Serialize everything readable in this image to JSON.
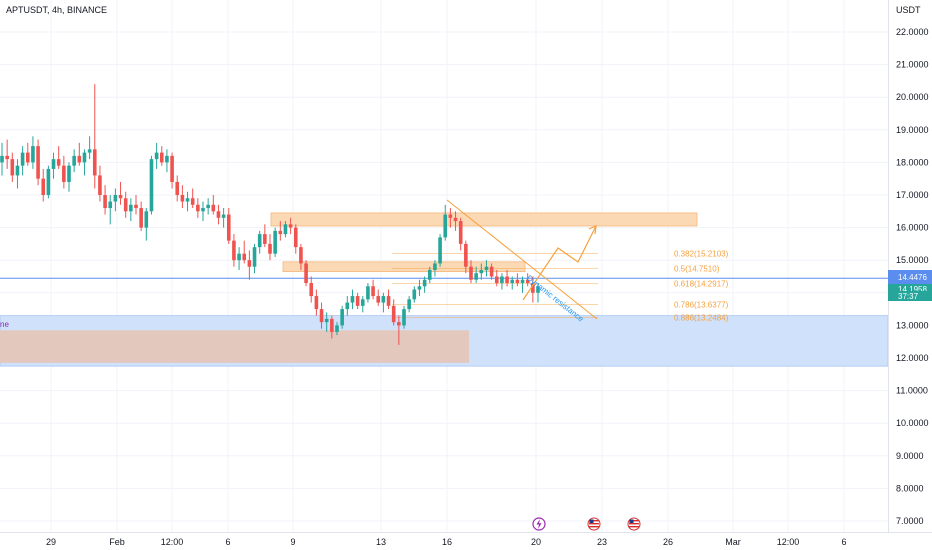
{
  "header": {
    "symbol_label": "APTUSDT, 4h, BINANCE"
  },
  "price_axis": {
    "currency": "USDT",
    "ticks": [
      "22.0000",
      "21.0000",
      "20.0000",
      "19.0000",
      "18.0000",
      "17.0000",
      "16.0000",
      "15.0000",
      "14.0000",
      "13.0000",
      "12.0000",
      "11.0000",
      "10.0000",
      "9.0000",
      "8.0000",
      "7.0000"
    ]
  },
  "time_axis": {
    "ticks": [
      "29",
      "Feb",
      "12:00",
      "6",
      "9",
      "13",
      "16",
      "20",
      "23",
      "26",
      "Mar",
      "12:00",
      "6"
    ]
  },
  "price_tags": {
    "line_price": "14.4476",
    "last_price": "14.1958",
    "countdown": "37:37"
  },
  "fib_levels": [
    {
      "ratio": "0.382",
      "price": "15.2103",
      "value": 15.2103
    },
    {
      "ratio": "0.5",
      "price": "14.7510",
      "value": 14.751
    },
    {
      "ratio": "0.618",
      "price": "14.2917",
      "value": 14.2917
    },
    {
      "ratio": "0.786",
      "price": "13.6377",
      "value": 13.6377
    },
    {
      "ratio": "0.886",
      "price": "13.2484",
      "value": 13.2484
    }
  ],
  "annotations": {
    "trendline_label": "Dynamic resistance",
    "zone_label": "ne"
  },
  "event_icons": [
    "lightning-icon",
    "us-flag-icon",
    "us-flag-icon"
  ],
  "colors": {
    "up": "#26a69a",
    "down": "#ef5350",
    "fib": "#f7a13d",
    "blue": "#2196f3",
    "demand_zone": "#cfe1fb",
    "inner_zone": "#e3c8bd",
    "supply_zone": "#fbd9b5",
    "price_line": "#5b8def",
    "last_tag": "#26a69a"
  },
  "chart_data": {
    "type": "candlestick",
    "title": "APTUSDT, 4h, BINANCE",
    "ylim": [
      6.8,
      22.6
    ],
    "y_ticks": [
      22,
      21,
      20,
      19,
      18,
      17,
      16,
      15,
      14,
      13,
      12,
      11,
      10,
      9,
      8,
      7
    ],
    "x_ticks": [
      "29",
      "Feb",
      "12:00",
      "6",
      "9",
      "13",
      "16",
      "20",
      "23",
      "26",
      "Mar",
      "12:00",
      "6"
    ],
    "grid": true,
    "current_price_line": 14.4476,
    "last_price": 14.1958,
    "candles_ohlc": [
      [
        18.0,
        18.6,
        17.6,
        18.2
      ],
      [
        18.2,
        18.7,
        17.8,
        18.1
      ],
      [
        18.1,
        18.3,
        17.4,
        17.6
      ],
      [
        17.6,
        18.1,
        17.2,
        17.9
      ],
      [
        17.9,
        18.5,
        17.6,
        18.3
      ],
      [
        18.3,
        18.6,
        17.9,
        18.0
      ],
      [
        18.0,
        18.8,
        17.8,
        18.5
      ],
      [
        18.5,
        18.7,
        17.3,
        17.5
      ],
      [
        17.5,
        17.8,
        16.8,
        17.0
      ],
      [
        17.0,
        17.9,
        16.9,
        17.8
      ],
      [
        17.8,
        18.3,
        17.5,
        18.1
      ],
      [
        18.1,
        18.5,
        17.8,
        17.9
      ],
      [
        17.9,
        18.2,
        17.2,
        17.4
      ],
      [
        17.4,
        18.0,
        17.1,
        17.9
      ],
      [
        17.9,
        18.4,
        17.7,
        18.2
      ],
      [
        18.2,
        18.6,
        17.9,
        18.0
      ],
      [
        18.0,
        18.4,
        17.6,
        18.3
      ],
      [
        18.3,
        18.8,
        18.1,
        18.4
      ],
      [
        18.4,
        20.4,
        17.2,
        17.6
      ],
      [
        17.6,
        17.9,
        16.8,
        17.0
      ],
      [
        17.0,
        17.3,
        16.4,
        16.6
      ],
      [
        16.6,
        17.0,
        16.1,
        16.8
      ],
      [
        16.8,
        17.2,
        16.5,
        17.0
      ],
      [
        17.0,
        17.4,
        16.7,
        16.9
      ],
      [
        16.9,
        17.1,
        16.3,
        16.5
      ],
      [
        16.5,
        16.9,
        16.2,
        16.7
      ],
      [
        16.7,
        17.0,
        16.4,
        16.6
      ],
      [
        16.6,
        16.8,
        15.9,
        16.0
      ],
      [
        16.0,
        16.6,
        15.6,
        16.5
      ],
      [
        16.5,
        18.2,
        16.4,
        18.1
      ],
      [
        18.1,
        18.6,
        17.8,
        18.3
      ],
      [
        18.3,
        18.5,
        17.9,
        18.0
      ],
      [
        18.0,
        18.4,
        17.7,
        18.2
      ],
      [
        18.2,
        18.3,
        17.2,
        17.4
      ],
      [
        17.4,
        17.6,
        16.8,
        17.0
      ],
      [
        17.0,
        17.3,
        16.6,
        16.8
      ],
      [
        16.8,
        17.1,
        16.5,
        16.9
      ],
      [
        16.9,
        17.2,
        16.6,
        16.7
      ],
      [
        16.7,
        16.9,
        16.3,
        16.5
      ],
      [
        16.5,
        16.8,
        16.2,
        16.6
      ],
      [
        16.6,
        16.9,
        16.4,
        16.7
      ],
      [
        16.7,
        17.0,
        16.4,
        16.5
      ],
      [
        16.5,
        16.7,
        16.1,
        16.3
      ],
      [
        16.3,
        16.6,
        16.0,
        16.4
      ],
      [
        16.4,
        16.6,
        15.5,
        15.6
      ],
      [
        15.6,
        15.8,
        14.8,
        15.0
      ],
      [
        15.0,
        15.4,
        14.7,
        15.2
      ],
      [
        15.2,
        15.6,
        14.9,
        15.0
      ],
      [
        15.0,
        15.3,
        14.4,
        14.8
      ],
      [
        14.8,
        15.5,
        14.6,
        15.4
      ],
      [
        15.4,
        15.9,
        15.2,
        15.8
      ],
      [
        15.8,
        16.1,
        15.4,
        15.5
      ],
      [
        15.5,
        15.8,
        15.0,
        15.2
      ],
      [
        15.2,
        16.0,
        15.1,
        15.9
      ],
      [
        15.9,
        16.2,
        15.6,
        15.8
      ],
      [
        15.8,
        16.2,
        15.7,
        16.1
      ],
      [
        16.1,
        16.3,
        15.8,
        16.0
      ],
      [
        16.0,
        16.1,
        15.2,
        15.4
      ],
      [
        15.4,
        15.5,
        14.7,
        14.9
      ],
      [
        14.9,
        15.0,
        14.2,
        14.3
      ],
      [
        14.3,
        14.5,
        13.7,
        13.9
      ],
      [
        13.9,
        14.1,
        13.3,
        13.5
      ],
      [
        13.5,
        13.7,
        12.9,
        13.1
      ],
      [
        13.1,
        13.4,
        12.8,
        13.2
      ],
      [
        13.2,
        13.3,
        12.6,
        12.8
      ],
      [
        12.8,
        13.1,
        12.7,
        13.0
      ],
      [
        13.0,
        13.6,
        12.9,
        13.5
      ],
      [
        13.5,
        13.9,
        13.3,
        13.7
      ],
      [
        13.7,
        14.1,
        13.5,
        13.9
      ],
      [
        13.9,
        14.0,
        13.5,
        13.6
      ],
      [
        13.6,
        13.9,
        13.4,
        13.8
      ],
      [
        13.8,
        14.3,
        13.7,
        14.2
      ],
      [
        14.2,
        14.4,
        13.8,
        13.9
      ],
      [
        13.9,
        14.1,
        13.6,
        13.7
      ],
      [
        13.7,
        14.0,
        13.4,
        13.9
      ],
      [
        13.9,
        14.1,
        13.5,
        13.6
      ],
      [
        13.6,
        13.8,
        13.0,
        13.1
      ],
      [
        13.1,
        13.3,
        12.4,
        13.0
      ],
      [
        13.0,
        13.6,
        12.9,
        13.5
      ],
      [
        13.5,
        13.9,
        13.4,
        13.8
      ],
      [
        13.8,
        14.2,
        13.7,
        14.1
      ],
      [
        14.1,
        14.4,
        13.9,
        14.2
      ],
      [
        14.2,
        14.5,
        14.0,
        14.4
      ],
      [
        14.4,
        14.8,
        14.3,
        14.7
      ],
      [
        14.7,
        15.0,
        14.5,
        14.9
      ],
      [
        14.9,
        15.8,
        14.8,
        15.7
      ],
      [
        15.7,
        16.7,
        15.6,
        16.4
      ],
      [
        16.4,
        16.6,
        16.0,
        16.3
      ],
      [
        16.3,
        16.5,
        15.9,
        16.2
      ],
      [
        16.2,
        16.3,
        15.3,
        15.5
      ],
      [
        15.5,
        15.6,
        14.6,
        14.8
      ],
      [
        14.8,
        15.0,
        14.3,
        14.4
      ],
      [
        14.4,
        14.8,
        14.3,
        14.6
      ],
      [
        14.6,
        14.9,
        14.4,
        14.7
      ],
      [
        14.7,
        15.0,
        14.5,
        14.8
      ],
      [
        14.8,
        14.9,
        14.4,
        14.5
      ],
      [
        14.5,
        14.7,
        14.2,
        14.3
      ],
      [
        14.3,
        14.6,
        14.1,
        14.5
      ],
      [
        14.5,
        14.7,
        14.2,
        14.3
      ],
      [
        14.3,
        14.5,
        14.1,
        14.4
      ],
      [
        14.4,
        14.6,
        14.2,
        14.3
      ],
      [
        14.3,
        14.5,
        14.0,
        14.4
      ],
      [
        14.4,
        14.6,
        14.2,
        14.3
      ],
      [
        14.3,
        14.5,
        13.7,
        14.0
      ],
      [
        14.0,
        14.3,
        13.7,
        14.2
      ]
    ],
    "zones": [
      {
        "name": "demand",
        "y_low": 11.75,
        "y_high": 13.3
      },
      {
        "name": "inner-demand",
        "y_low": 11.85,
        "y_high": 12.85
      },
      {
        "name": "supply-upper",
        "y_low": 16.05,
        "y_high": 16.45
      },
      {
        "name": "supply-lower",
        "y_low": 14.65,
        "y_high": 14.95
      }
    ]
  }
}
